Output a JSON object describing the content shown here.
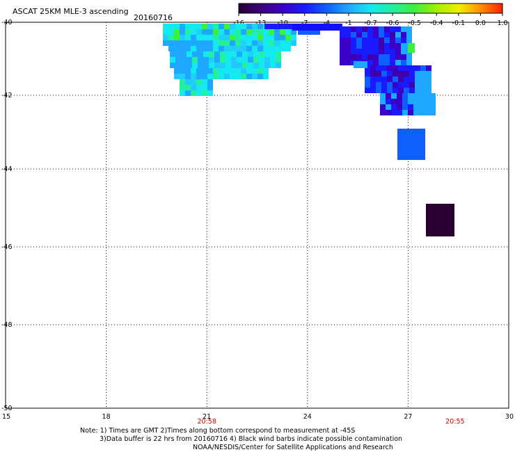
{
  "header": {
    "title": "ASCAT 25KM MLE-3 ascending",
    "date": "20160716"
  },
  "colorbar": {
    "labels": [
      "-16",
      "-13",
      "-10",
      "-7",
      "-4",
      "-1",
      "-0.7",
      "-0.6",
      "-0.5",
      "-0.4",
      "-0.1",
      "0.0",
      "1.0"
    ],
    "colors": [
      "#2a0033",
      "#3d007a",
      "#3b00c8",
      "#1a1aff",
      "#0f5fff",
      "#1fa8ff",
      "#14e8f0",
      "#22f0a0",
      "#3cf03c",
      "#a0f000",
      "#f0f000",
      "#ff9000",
      "#ff2000"
    ]
  },
  "map": {
    "lat_labels": [
      "-40",
      "-42",
      "-44",
      "-46",
      "-48",
      "-50"
    ],
    "lon_labels": [
      "15",
      "18",
      "21",
      "24",
      "27",
      "30"
    ],
    "time_labels": [
      {
        "text": "20:58",
        "lon": 21
      },
      {
        "text": "20:55",
        "lon": 28.4
      }
    ],
    "time_color": "#cc0000"
  },
  "notes": {
    "line1": "Note: 1) Times are GMT 2)Times along bottom correspond to measurement at -45S",
    "line2": "3)Data buffer is 22 hrs from 20160716 4) Black wind barbs indicate possible contamination",
    "line3": "NOAA/NESDIS/Center for Satellite Applications and Research"
  }
}
